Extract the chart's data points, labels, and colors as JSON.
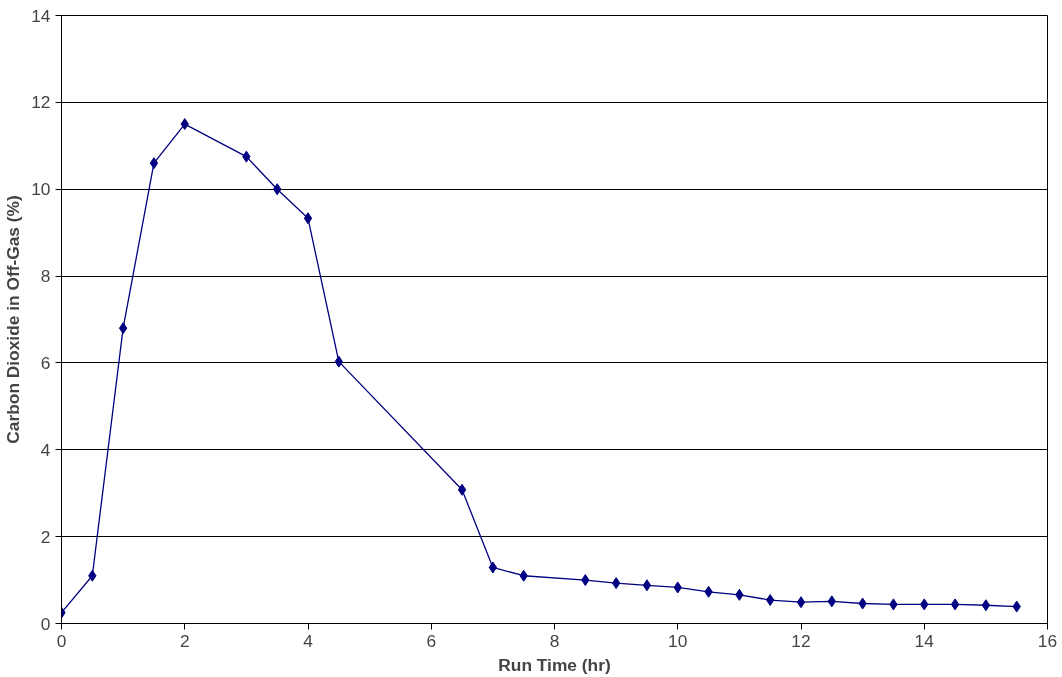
{
  "chart_data": {
    "type": "line",
    "xlabel": "Run Time (hr)",
    "ylabel": "Carbon Dioxide in Off-Gas (%)",
    "x": [
      0,
      0.5,
      1,
      1.5,
      2,
      3,
      3.5,
      4,
      4.5,
      6.5,
      7,
      7.5,
      8.5,
      9,
      9.5,
      10,
      10.5,
      11,
      11.5,
      12,
      12.5,
      13,
      13.5,
      14,
      14.5,
      15,
      15.5
    ],
    "series": [
      {
        "color": "#000080",
        "values": [
          0.25,
          1.1,
          6.8,
          10.6,
          11.5,
          10.75,
          10.0,
          9.33,
          6.03,
          3.08,
          1.29,
          1.1,
          1.0,
          0.93,
          0.88,
          0.83,
          0.73,
          0.66,
          0.54,
          0.49,
          0.51,
          0.46,
          0.44,
          0.44,
          0.44,
          0.42,
          0.39
        ]
      }
    ],
    "xlim": [
      0,
      16
    ],
    "xticks": [
      0,
      2,
      4,
      6,
      8,
      10,
      12,
      14,
      16
    ],
    "ylim": [
      0,
      14
    ],
    "yticks": [
      0,
      2,
      4,
      6,
      8,
      10,
      12,
      14
    ],
    "grid": "y",
    "marker": "diamond",
    "line_style": "solid"
  }
}
